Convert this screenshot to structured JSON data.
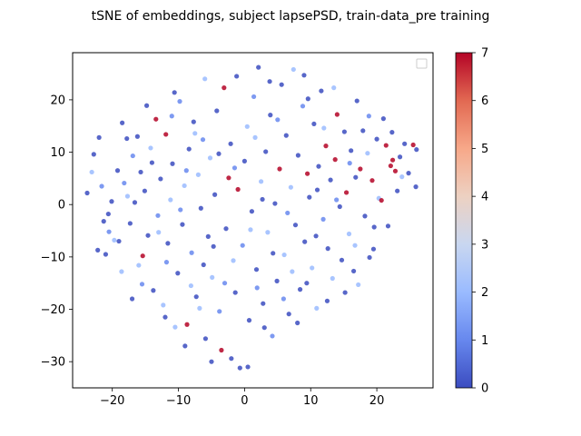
{
  "chart_data": {
    "type": "scatter",
    "title": "tSNE of embeddings, subject lapsePSD, train-data_pre training",
    "xlabel": "",
    "ylabel": "",
    "xlim": [
      -26,
      28.5
    ],
    "ylim": [
      -35,
      29
    ],
    "xticks": [
      -20,
      -10,
      0,
      10,
      20
    ],
    "yticks": [
      -30,
      -20,
      -10,
      0,
      10,
      20
    ],
    "grid": false,
    "legend": {
      "placement": "top-right",
      "entries": []
    },
    "colorbar": {
      "cmap": "coolwarm",
      "range": [
        0,
        7
      ],
      "ticks": [
        0,
        1,
        2,
        3,
        4,
        5,
        6,
        7
      ],
      "stops": [
        "#3b4cc0",
        "#6788ee",
        "#9abbff",
        "#c9d7f0",
        "#edd1c2",
        "#f7a889",
        "#e26952",
        "#b40426"
      ]
    },
    "points": [
      {
        "x": -23.8,
        "y": 2.2,
        "c": 0
      },
      {
        "x": -23.1,
        "y": 6.2,
        "c": 2
      },
      {
        "x": -22.8,
        "y": 9.6,
        "c": 0
      },
      {
        "x": -22.2,
        "y": -8.7,
        "c": 0
      },
      {
        "x": -21.6,
        "y": 3.5,
        "c": 1
      },
      {
        "x": -21.3,
        "y": -3.2,
        "c": 0
      },
      {
        "x": -20.6,
        "y": -1.8,
        "c": 0
      },
      {
        "x": -20.1,
        "y": 0.6,
        "c": 0
      },
      {
        "x": -19.7,
        "y": -6.8,
        "c": 2
      },
      {
        "x": -19.2,
        "y": 6.5,
        "c": 0
      },
      {
        "x": -18.6,
        "y": -12.8,
        "c": 2
      },
      {
        "x": -18.2,
        "y": 4.1,
        "c": 1
      },
      {
        "x": -17.8,
        "y": 12.6,
        "c": 0
      },
      {
        "x": -17.3,
        "y": -3.6,
        "c": 0
      },
      {
        "x": -16.9,
        "y": 9.3,
        "c": 1
      },
      {
        "x": -16.6,
        "y": 0.4,
        "c": 0
      },
      {
        "x": -16.0,
        "y": -11.6,
        "c": 2
      },
      {
        "x": -15.7,
        "y": 6.2,
        "c": 0
      },
      {
        "x": -15.4,
        "y": -9.8,
        "c": 7
      },
      {
        "x": -15.1,
        "y": 2.6,
        "c": 0
      },
      {
        "x": -14.6,
        "y": -5.9,
        "c": 0
      },
      {
        "x": -14.2,
        "y": 10.8,
        "c": 2
      },
      {
        "x": -13.8,
        "y": -16.4,
        "c": 0
      },
      {
        "x": -13.4,
        "y": 16.3,
        "c": 7
      },
      {
        "x": -13.1,
        "y": -2.1,
        "c": 1
      },
      {
        "x": -12.7,
        "y": 4.9,
        "c": 0
      },
      {
        "x": -12.3,
        "y": -19.2,
        "c": 2
      },
      {
        "x": -11.9,
        "y": 13.4,
        "c": 7
      },
      {
        "x": -11.6,
        "y": -7.4,
        "c": 0
      },
      {
        "x": -11.2,
        "y": 0.9,
        "c": 2
      },
      {
        "x": -10.9,
        "y": 7.8,
        "c": 0
      },
      {
        "x": -10.5,
        "y": -23.4,
        "c": 2
      },
      {
        "x": -10.1,
        "y": -13.1,
        "c": 0
      },
      {
        "x": -9.8,
        "y": 19.7,
        "c": 1
      },
      {
        "x": -9.4,
        "y": -3.8,
        "c": 0
      },
      {
        "x": -9.1,
        "y": 3.6,
        "c": 2
      },
      {
        "x": -8.7,
        "y": -22.9,
        "c": 7
      },
      {
        "x": -8.4,
        "y": 10.6,
        "c": 0
      },
      {
        "x": -8.0,
        "y": -9.2,
        "c": 1
      },
      {
        "x": -7.7,
        "y": 15.8,
        "c": 0
      },
      {
        "x": -7.3,
        "y": -17.6,
        "c": 0
      },
      {
        "x": -7.0,
        "y": 5.7,
        "c": 2
      },
      {
        "x": -6.6,
        "y": -0.7,
        "c": 0
      },
      {
        "x": -6.3,
        "y": 12.4,
        "c": 1
      },
      {
        "x": -5.9,
        "y": -25.6,
        "c": 0
      },
      {
        "x": -5.5,
        "y": -6.1,
        "c": 0
      },
      {
        "x": -5.2,
        "y": 8.9,
        "c": 2
      },
      {
        "x": -4.9,
        "y": -13.9,
        "c": 2
      },
      {
        "x": -4.5,
        "y": 1.9,
        "c": 0
      },
      {
        "x": -4.2,
        "y": 17.9,
        "c": 0
      },
      {
        "x": -3.8,
        "y": -20.4,
        "c": 1
      },
      {
        "x": -3.5,
        "y": -27.8,
        "c": 7
      },
      {
        "x": -3.1,
        "y": 22.3,
        "c": 7
      },
      {
        "x": -2.8,
        "y": -4.6,
        "c": 0
      },
      {
        "x": -2.4,
        "y": 5.1,
        "c": 7
      },
      {
        "x": -2.1,
        "y": 11.6,
        "c": 0
      },
      {
        "x": -1.7,
        "y": -10.7,
        "c": 2
      },
      {
        "x": -1.4,
        "y": -16.8,
        "c": 0
      },
      {
        "x": -1.0,
        "y": 2.9,
        "c": 7
      },
      {
        "x": -0.7,
        "y": -31.2,
        "c": 0
      },
      {
        "x": -0.3,
        "y": -7.8,
        "c": 1
      },
      {
        "x": 0.0,
        "y": 8.3,
        "c": 0
      },
      {
        "x": 0.4,
        "y": 14.9,
        "c": 2
      },
      {
        "x": 0.7,
        "y": -22.1,
        "c": 0
      },
      {
        "x": 1.1,
        "y": -1.3,
        "c": 0
      },
      {
        "x": 1.4,
        "y": 20.6,
        "c": 1
      },
      {
        "x": 1.8,
        "y": -12.4,
        "c": 0
      },
      {
        "x": 2.1,
        "y": 26.2,
        "c": 0
      },
      {
        "x": 2.5,
        "y": 4.4,
        "c": 2
      },
      {
        "x": 2.8,
        "y": -18.9,
        "c": 0
      },
      {
        "x": 3.2,
        "y": 10.1,
        "c": 0
      },
      {
        "x": 3.5,
        "y": -5.3,
        "c": 2
      },
      {
        "x": 3.9,
        "y": 17.1,
        "c": 0
      },
      {
        "x": 4.2,
        "y": -25.1,
        "c": 1
      },
      {
        "x": 4.6,
        "y": 0.2,
        "c": 0
      },
      {
        "x": 4.9,
        "y": -14.6,
        "c": 0
      },
      {
        "x": 5.3,
        "y": 6.8,
        "c": 7
      },
      {
        "x": 5.6,
        "y": 22.9,
        "c": 0
      },
      {
        "x": 6.0,
        "y": -9.6,
        "c": 2
      },
      {
        "x": 6.3,
        "y": 13.2,
        "c": 0
      },
      {
        "x": 6.7,
        "y": -20.9,
        "c": 0
      },
      {
        "x": 7.0,
        "y": 3.3,
        "c": 2
      },
      {
        "x": 7.4,
        "y": 25.8,
        "c": 2
      },
      {
        "x": 7.7,
        "y": -3.9,
        "c": 0
      },
      {
        "x": 8.1,
        "y": 9.4,
        "c": 0
      },
      {
        "x": 8.4,
        "y": -16.2,
        "c": 0
      },
      {
        "x": 8.8,
        "y": 18.8,
        "c": 1
      },
      {
        "x": 9.1,
        "y": -7.1,
        "c": 0
      },
      {
        "x": 9.5,
        "y": 5.9,
        "c": 7
      },
      {
        "x": 9.8,
        "y": 1.4,
        "c": 0
      },
      {
        "x": 10.2,
        "y": -12.1,
        "c": 2
      },
      {
        "x": 10.5,
        "y": 15.4,
        "c": 0
      },
      {
        "x": 10.9,
        "y": -19.8,
        "c": 2
      },
      {
        "x": 11.2,
        "y": 7.3,
        "c": 0
      },
      {
        "x": 11.6,
        "y": 21.7,
        "c": 0
      },
      {
        "x": 11.9,
        "y": -2.8,
        "c": 1
      },
      {
        "x": 12.3,
        "y": 11.2,
        "c": 7
      },
      {
        "x": 12.6,
        "y": -8.4,
        "c": 0
      },
      {
        "x": 13.0,
        "y": 4.7,
        "c": 0
      },
      {
        "x": 13.3,
        "y": -14.1,
        "c": 2
      },
      {
        "x": 13.7,
        "y": 8.6,
        "c": 7
      },
      {
        "x": 14.0,
        "y": 17.2,
        "c": 7
      },
      {
        "x": 14.4,
        "y": -0.4,
        "c": 0
      },
      {
        "x": 14.7,
        "y": -10.6,
        "c": 0
      },
      {
        "x": 15.1,
        "y": 13.9,
        "c": 0
      },
      {
        "x": 15.4,
        "y": 2.3,
        "c": 7
      },
      {
        "x": 15.8,
        "y": -5.6,
        "c": 2
      },
      {
        "x": 16.1,
        "y": 10.3,
        "c": 0
      },
      {
        "x": 16.5,
        "y": -12.7,
        "c": 0
      },
      {
        "x": 16.8,
        "y": 5.2,
        "c": 0
      },
      {
        "x": 17.2,
        "y": -15.3,
        "c": 2
      },
      {
        "x": 17.5,
        "y": 6.8,
        "c": 7
      },
      {
        "x": 17.9,
        "y": 14.1,
        "c": 0
      },
      {
        "x": 18.2,
        "y": -2.2,
        "c": 0
      },
      {
        "x": 18.6,
        "y": 9.8,
        "c": 2
      },
      {
        "x": 18.9,
        "y": -10.1,
        "c": 0
      },
      {
        "x": 19.3,
        "y": 4.6,
        "c": 7
      },
      {
        "x": 19.6,
        "y": -4.3,
        "c": 0
      },
      {
        "x": 20.0,
        "y": 12.5,
        "c": 0
      },
      {
        "x": 20.3,
        "y": 1.2,
        "c": 2
      },
      {
        "x": 20.7,
        "y": 0.8,
        "c": 7
      },
      {
        "x": 21.0,
        "y": 16.4,
        "c": 0
      },
      {
        "x": 21.4,
        "y": 11.3,
        "c": 7
      },
      {
        "x": 21.7,
        "y": -4.1,
        "c": 0
      },
      {
        "x": 22.1,
        "y": 7.4,
        "c": 7
      },
      {
        "x": 22.4,
        "y": 8.5,
        "c": 7
      },
      {
        "x": 22.8,
        "y": 6.4,
        "c": 7
      },
      {
        "x": 23.1,
        "y": 2.6,
        "c": 0
      },
      {
        "x": 23.5,
        "y": 9.1,
        "c": 0
      },
      {
        "x": 23.8,
        "y": 5.3,
        "c": 2
      },
      {
        "x": 24.2,
        "y": 11.6,
        "c": 0
      },
      {
        "x": 25.5,
        "y": 11.4,
        "c": 7
      },
      {
        "x": 25.9,
        "y": 3.4,
        "c": 0
      },
      {
        "x": 26.0,
        "y": 10.5,
        "c": 0
      },
      {
        "x": -21.0,
        "y": -9.5,
        "c": 0
      },
      {
        "x": -19.0,
        "y": -7.0,
        "c": 0
      },
      {
        "x": -17.0,
        "y": -18.0,
        "c": 0
      },
      {
        "x": -15.5,
        "y": -15.2,
        "c": 1
      },
      {
        "x": -12.0,
        "y": -21.5,
        "c": 0
      },
      {
        "x": -9.0,
        "y": -27.0,
        "c": 0
      },
      {
        "x": -6.8,
        "y": -19.8,
        "c": 2
      },
      {
        "x": -5.0,
        "y": -30.0,
        "c": 0
      },
      {
        "x": -2.0,
        "y": -29.4,
        "c": 0
      },
      {
        "x": 0.5,
        "y": -31.0,
        "c": 0
      },
      {
        "x": 3.0,
        "y": -23.5,
        "c": 0
      },
      {
        "x": 8.0,
        "y": -22.6,
        "c": 0
      },
      {
        "x": 12.5,
        "y": -18.4,
        "c": 0
      },
      {
        "x": 15.2,
        "y": -16.8,
        "c": 0
      },
      {
        "x": 19.5,
        "y": -8.5,
        "c": 0
      },
      {
        "x": -22.0,
        "y": 12.8,
        "c": 0
      },
      {
        "x": -18.5,
        "y": 15.6,
        "c": 0
      },
      {
        "x": -14.8,
        "y": 18.9,
        "c": 0
      },
      {
        "x": -10.6,
        "y": 21.4,
        "c": 0
      },
      {
        "x": -6.0,
        "y": 24.0,
        "c": 2
      },
      {
        "x": -1.2,
        "y": 24.5,
        "c": 0
      },
      {
        "x": 3.8,
        "y": 23.5,
        "c": 0
      },
      {
        "x": 9.0,
        "y": 24.7,
        "c": 0
      },
      {
        "x": 13.5,
        "y": 22.3,
        "c": 2
      },
      {
        "x": 17.0,
        "y": 19.8,
        "c": 0
      },
      {
        "x": 22.3,
        "y": 13.8,
        "c": 0
      },
      {
        "x": 24.8,
        "y": 6.0,
        "c": 0
      },
      {
        "x": -13.0,
        "y": -5.3,
        "c": 2
      },
      {
        "x": -9.7,
        "y": -1.0,
        "c": 1
      },
      {
        "x": -6.2,
        "y": -11.5,
        "c": 0
      },
      {
        "x": -3.0,
        "y": -15.0,
        "c": 1
      },
      {
        "x": 0.9,
        "y": -4.8,
        "c": 2
      },
      {
        "x": 4.3,
        "y": -9.3,
        "c": 0
      },
      {
        "x": 7.2,
        "y": -12.8,
        "c": 2
      },
      {
        "x": 10.8,
        "y": -6.0,
        "c": 0
      },
      {
        "x": 13.9,
        "y": 0.9,
        "c": 1
      },
      {
        "x": 16.7,
        "y": -7.8,
        "c": 2
      },
      {
        "x": -16.2,
        "y": 13.0,
        "c": 0
      },
      {
        "x": -11.0,
        "y": 16.9,
        "c": 1
      },
      {
        "x": -7.5,
        "y": 13.6,
        "c": 2
      },
      {
        "x": -3.9,
        "y": 9.7,
        "c": 0
      },
      {
        "x": 1.6,
        "y": 12.8,
        "c": 2
      },
      {
        "x": 5.0,
        "y": 16.2,
        "c": 1
      },
      {
        "x": 9.6,
        "y": 20.2,
        "c": 0
      },
      {
        "x": 12.0,
        "y": 14.6,
        "c": 2
      },
      {
        "x": 18.8,
        "y": 16.9,
        "c": 1
      },
      {
        "x": -20.5,
        "y": -5.2,
        "c": 1
      },
      {
        "x": -17.7,
        "y": 1.6,
        "c": 2
      },
      {
        "x": -14.0,
        "y": 8.0,
        "c": 0
      },
      {
        "x": -8.8,
        "y": 6.5,
        "c": 1
      },
      {
        "x": -1.5,
        "y": 7.0,
        "c": 1
      },
      {
        "x": 2.7,
        "y": 1.0,
        "c": 0
      },
      {
        "x": 6.5,
        "y": -1.6,
        "c": 1
      },
      {
        "x": 11.0,
        "y": 2.8,
        "c": 0
      },
      {
        "x": 15.9,
        "y": 7.9,
        "c": 1
      },
      {
        "x": -11.8,
        "y": -11.0,
        "c": 1
      },
      {
        "x": -8.1,
        "y": -15.5,
        "c": 2
      },
      {
        "x": -4.7,
        "y": -8.0,
        "c": 0
      },
      {
        "x": 1.9,
        "y": -15.9,
        "c": 1
      },
      {
        "x": 5.9,
        "y": -18.0,
        "c": 1
      },
      {
        "x": 9.4,
        "y": -15.0,
        "c": 0
      }
    ]
  }
}
